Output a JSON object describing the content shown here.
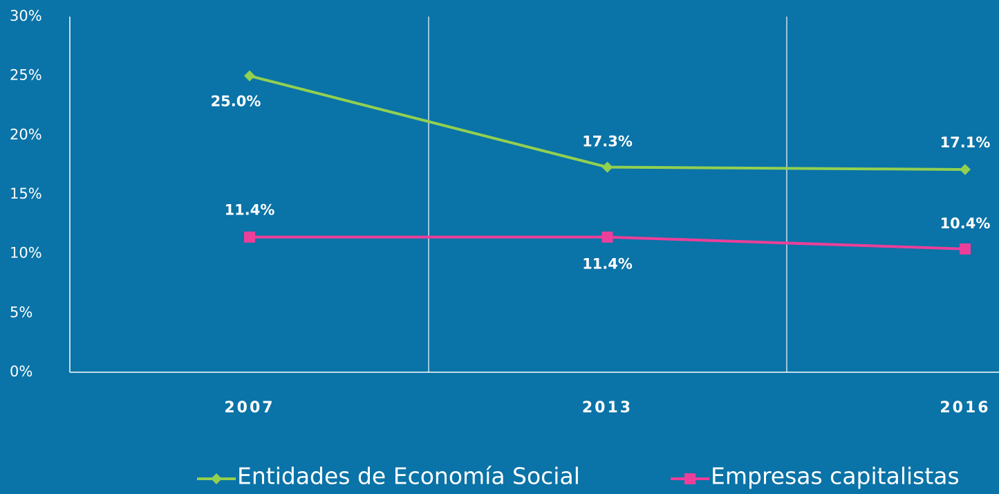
{
  "chart_data": {
    "type": "line",
    "categories": [
      "2007",
      "2013",
      "2016"
    ],
    "series": [
      {
        "name": "Entidades de Economía Social",
        "color": "#92d050",
        "marker": "diamond",
        "values": [
          25.0,
          17.3,
          17.1
        ],
        "value_labels": [
          "25.0%",
          "17.3%",
          "17.1%"
        ]
      },
      {
        "name": "Empresas capitalistas",
        "color": "#ec3f9a",
        "marker": "square",
        "values": [
          11.4,
          11.4,
          10.4
        ],
        "value_labels": [
          "11.4%",
          "11.4%",
          "10.4%"
        ]
      }
    ],
    "ylim": [
      0,
      30
    ],
    "yticks": [
      {
        "value": 0,
        "label": "0%"
      },
      {
        "value": 5,
        "label": "5%"
      },
      {
        "value": 10,
        "label": "10%"
      },
      {
        "value": 15,
        "label": "15%"
      },
      {
        "value": 20,
        "label": "20%"
      },
      {
        "value": 25,
        "label": "25%"
      },
      {
        "value": 30,
        "label": "30%"
      }
    ],
    "legend": "bottom"
  }
}
